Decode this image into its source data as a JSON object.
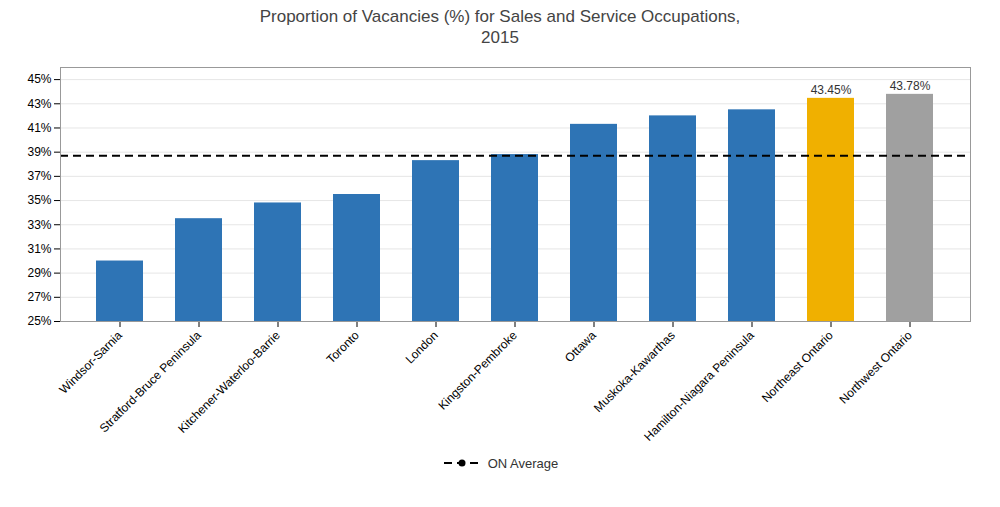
{
  "chart_data": {
    "type": "bar",
    "title": "Proportion of Vacancies (%) for Sales and Service Occupations,\n2015",
    "categories": [
      "Windsor-Sarnia",
      "Stratford-Bruce Peninsula",
      "Kitchener-Waterloo-Barrie",
      "Toronto",
      "London",
      "Kingston-Pembroke",
      "Ottawa",
      "Muskoka-Kawarthas",
      "Hamilton-Niagara Peninsula",
      "Northeast Ontario",
      "Northwest Ontario"
    ],
    "values": [
      30.0,
      33.5,
      34.8,
      35.5,
      38.3,
      38.8,
      41.3,
      42.0,
      42.5,
      43.45,
      43.78
    ],
    "colors": [
      "#2E74B5",
      "#2E74B5",
      "#2E74B5",
      "#2E74B5",
      "#2E74B5",
      "#2E74B5",
      "#2E74B5",
      "#2E74B5",
      "#2E74B5",
      "#F0B000",
      "#A0A0A0"
    ],
    "annotations": [
      {
        "category": "Northeast Ontario",
        "value": 43.45,
        "label": "43.45%"
      },
      {
        "category": "Northwest Ontario",
        "value": 43.78,
        "label": "43.78%"
      }
    ],
    "reference_lines": [
      {
        "name": "ON Average",
        "value": 38.7,
        "color": "black",
        "line_style": "dashed",
        "marker": "circle"
      }
    ],
    "ylim": [
      25,
      46
    ],
    "yticks": [
      {
        "value": 25,
        "label": "25%"
      },
      {
        "value": 27,
        "label": "27%"
      },
      {
        "value": 29,
        "label": "29%"
      },
      {
        "value": 31,
        "label": "31%"
      },
      {
        "value": 33,
        "label": "33%"
      },
      {
        "value": 35,
        "label": "35%"
      },
      {
        "value": 37,
        "label": "37%"
      },
      {
        "value": 39,
        "label": "39%"
      },
      {
        "value": 41,
        "label": "41%"
      },
      {
        "value": 43,
        "label": "43%"
      },
      {
        "value": 45,
        "label": "45%"
      }
    ],
    "grid": true,
    "legend": "bottom"
  }
}
